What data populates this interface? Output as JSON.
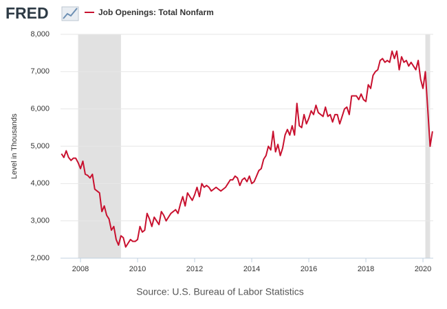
{
  "brand": "FRED",
  "chart_data": {
    "type": "line",
    "ylabel": "Level in Thousands",
    "source": "Source: U.S. Bureau of Labor Statistics",
    "xlim": [
      2007.3,
      2020.36
    ],
    "xticks": [
      2008,
      2010,
      2012,
      2014,
      2016,
      2018,
      2020
    ],
    "ylim": [
      2000,
      8000
    ],
    "yticks": [
      {
        "value": 2000,
        "label": "2,000"
      },
      {
        "value": 3000,
        "label": "3,000"
      },
      {
        "value": 4000,
        "label": "4,000"
      },
      {
        "value": 5000,
        "label": "5,000"
      },
      {
        "value": 6000,
        "label": "6,000"
      },
      {
        "value": 7000,
        "label": "7,000"
      },
      {
        "value": 8000,
        "label": "8,000"
      }
    ],
    "grid": true,
    "recessions": [
      [
        2007.917,
        2009.417
      ],
      [
        2020.083,
        2020.25
      ]
    ],
    "x": [
      2007.333,
      2007.417,
      2007.5,
      2007.583,
      2007.667,
      2007.75,
      2007.833,
      2007.917,
      2008.0,
      2008.083,
      2008.167,
      2008.25,
      2008.333,
      2008.417,
      2008.5,
      2008.583,
      2008.667,
      2008.75,
      2008.833,
      2008.917,
      2009.0,
      2009.083,
      2009.167,
      2009.25,
      2009.333,
      2009.417,
      2009.5,
      2009.583,
      2009.667,
      2009.75,
      2009.833,
      2009.917,
      2010.0,
      2010.083,
      2010.167,
      2010.25,
      2010.333,
      2010.417,
      2010.5,
      2010.583,
      2010.667,
      2010.75,
      2010.833,
      2010.917,
      2011.0,
      2011.083,
      2011.167,
      2011.25,
      2011.333,
      2011.417,
      2011.5,
      2011.583,
      2011.667,
      2011.75,
      2011.833,
      2011.917,
      2012.0,
      2012.083,
      2012.167,
      2012.25,
      2012.333,
      2012.417,
      2012.5,
      2012.583,
      2012.667,
      2012.75,
      2012.833,
      2012.917,
      2013.0,
      2013.083,
      2013.167,
      2013.25,
      2013.333,
      2013.417,
      2013.5,
      2013.583,
      2013.667,
      2013.75,
      2013.833,
      2013.917,
      2014.0,
      2014.083,
      2014.167,
      2014.25,
      2014.333,
      2014.417,
      2014.5,
      2014.583,
      2014.667,
      2014.75,
      2014.833,
      2014.917,
      2015.0,
      2015.083,
      2015.167,
      2015.25,
      2015.333,
      2015.417,
      2015.5,
      2015.583,
      2015.667,
      2015.75,
      2015.833,
      2015.917,
      2016.0,
      2016.083,
      2016.167,
      2016.25,
      2016.333,
      2016.417,
      2016.5,
      2016.583,
      2016.667,
      2016.75,
      2016.833,
      2016.917,
      2017.0,
      2017.083,
      2017.167,
      2017.25,
      2017.333,
      2017.417,
      2017.5,
      2017.583,
      2017.667,
      2017.75,
      2017.833,
      2017.917,
      2018.0,
      2018.083,
      2018.167,
      2018.25,
      2018.333,
      2018.417,
      2018.5,
      2018.583,
      2018.667,
      2018.75,
      2018.833,
      2018.917,
      2019.0,
      2019.083,
      2019.167,
      2019.25,
      2019.333,
      2019.417,
      2019.5,
      2019.583,
      2019.667,
      2019.75,
      2019.833,
      2019.917,
      2020.0,
      2020.083,
      2020.167,
      2020.25,
      2020.333
    ],
    "series": [
      {
        "name": "Job Openings: Total Nonfarm",
        "color": "#c8102e",
        "values": [
          4800,
          4700,
          4880,
          4700,
          4620,
          4680,
          4680,
          4560,
          4400,
          4600,
          4250,
          4220,
          4150,
          4250,
          3850,
          3800,
          3750,
          3250,
          3400,
          3150,
          3050,
          2750,
          2850,
          2500,
          2350,
          2600,
          2550,
          2300,
          2400,
          2500,
          2450,
          2450,
          2500,
          2850,
          2700,
          2750,
          3200,
          3050,
          2850,
          3100,
          3000,
          2900,
          3250,
          3150,
          3000,
          3100,
          3200,
          3250,
          3300,
          3200,
          3450,
          3650,
          3400,
          3750,
          3650,
          3550,
          3700,
          3900,
          3650,
          4000,
          3900,
          3950,
          3900,
          3800,
          3850,
          3900,
          3850,
          3800,
          3850,
          3900,
          4000,
          4100,
          4100,
          4200,
          4150,
          3950,
          4100,
          4150,
          4050,
          4200,
          4000,
          4050,
          4200,
          4350,
          4400,
          4650,
          4750,
          5000,
          4900,
          5400,
          4850,
          5050,
          4750,
          4950,
          5300,
          5450,
          5300,
          5550,
          5300,
          6150,
          5550,
          5500,
          5850,
          5600,
          5750,
          5950,
          5850,
          6100,
          5900,
          5850,
          5800,
          6050,
          5800,
          5850,
          5650,
          5850,
          5850,
          5600,
          5800,
          6000,
          6050,
          5850,
          6350,
          6350,
          6350,
          6250,
          6400,
          6250,
          6200,
          6650,
          6550,
          6900,
          7000,
          7050,
          7300,
          7350,
          7250,
          7300,
          7250,
          7550,
          7350,
          7550,
          7050,
          7400,
          7250,
          7300,
          7150,
          7250,
          7150,
          7050,
          7300,
          6800,
          6550,
          7000,
          6000,
          5000,
          5400
        ]
      }
    ]
  }
}
